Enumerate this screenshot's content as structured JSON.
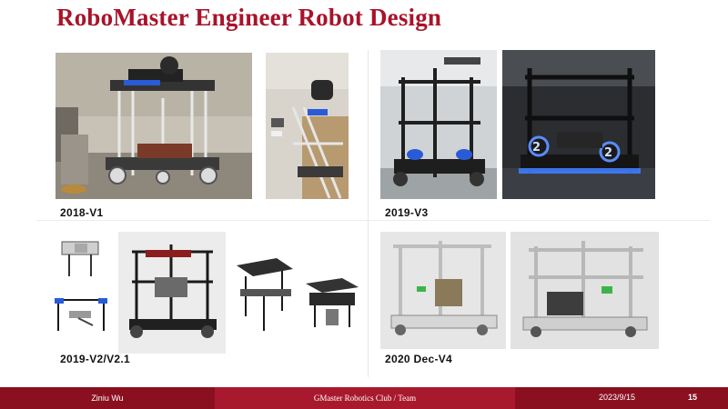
{
  "slide": {
    "title": "RoboMaster  Engineer  Robot Design",
    "captions": {
      "v1": "2018-V1",
      "v3": "2019-V3",
      "v2": "2019-V2/V2.1",
      "v4": "2020 Dec-V4"
    }
  },
  "footer": {
    "author": "Ziniu Wu",
    "organization": "GMaster Robotics Club / Team",
    "date": "2023/9/15",
    "page_number": "15"
  },
  "colors": {
    "title": "#a8132a",
    "footer_dark": "#8a1020",
    "footer_mid": "#a8192d",
    "robot_blue": "#2a5bd7"
  }
}
